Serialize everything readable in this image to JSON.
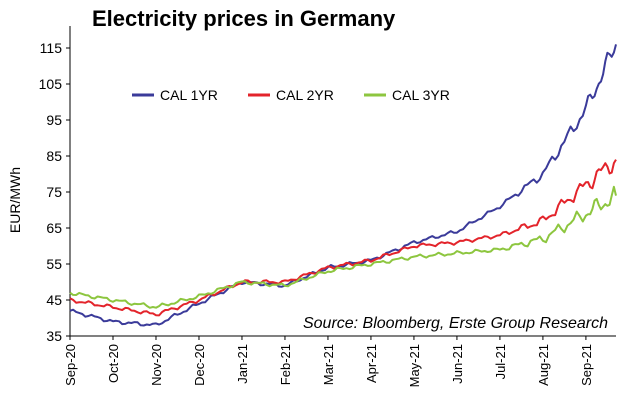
{
  "chart_data": {
    "type": "line",
    "title": "Electricity prices in Germany",
    "xlabel": "",
    "ylabel": "EUR/MWh",
    "ylim": [
      35,
      120
    ],
    "yticks": [
      35,
      45,
      55,
      65,
      75,
      85,
      95,
      105,
      115
    ],
    "x_label_months": [
      "Sep-20",
      "Oct-20",
      "Nov-20",
      "Dec-20",
      "Jan-21",
      "Feb-21",
      "Mar-21",
      "Apr-21",
      "May-21",
      "Jun-21",
      "Jul-21",
      "Aug-21",
      "Sep-21"
    ],
    "x_month_index": [
      0,
      1,
      2,
      3,
      4,
      5,
      6,
      7,
      8,
      9,
      10,
      11,
      12,
      12.7
    ],
    "annotation": "Source: Bloomberg, Erste Group Research",
    "series": [
      {
        "name": "CAL 1YR",
        "color": "#3b3b9a",
        "values": [
          42,
          39,
          38,
          44,
          50,
          49,
          54,
          56,
          61,
          64,
          71,
          80,
          98,
          116
        ]
      },
      {
        "name": "CAL 2YR",
        "color": "#e3242b",
        "values": [
          45,
          43,
          41,
          45,
          50,
          50,
          54,
          56,
          60,
          61,
          63,
          67,
          77,
          84
        ]
      },
      {
        "name": "CAL 3YR",
        "color": "#8dc63f",
        "values": [
          47,
          45,
          43,
          46,
          50,
          49,
          53,
          55,
          57,
          58,
          59,
          62,
          69,
          74
        ]
      }
    ]
  }
}
